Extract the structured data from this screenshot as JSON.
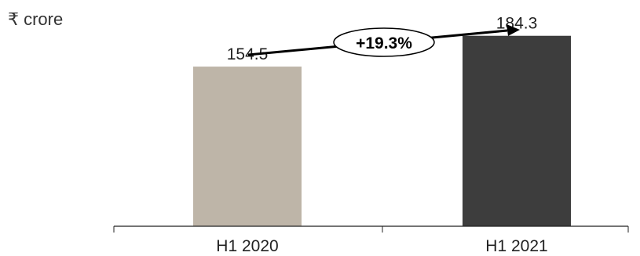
{
  "chart_data": {
    "type": "bar",
    "unit": "₹ crore",
    "categories": [
      "H1 2020",
      "H1 2021"
    ],
    "values": [
      154.5,
      184.3
    ],
    "data_labels": [
      "154.5",
      "184.3"
    ],
    "bar_colors": [
      "#beb5a8",
      "#3d3d3d"
    ],
    "growth_annotation": "+19.3%",
    "ylim": [
      0,
      200
    ],
    "grid": false,
    "legend": "none"
  }
}
